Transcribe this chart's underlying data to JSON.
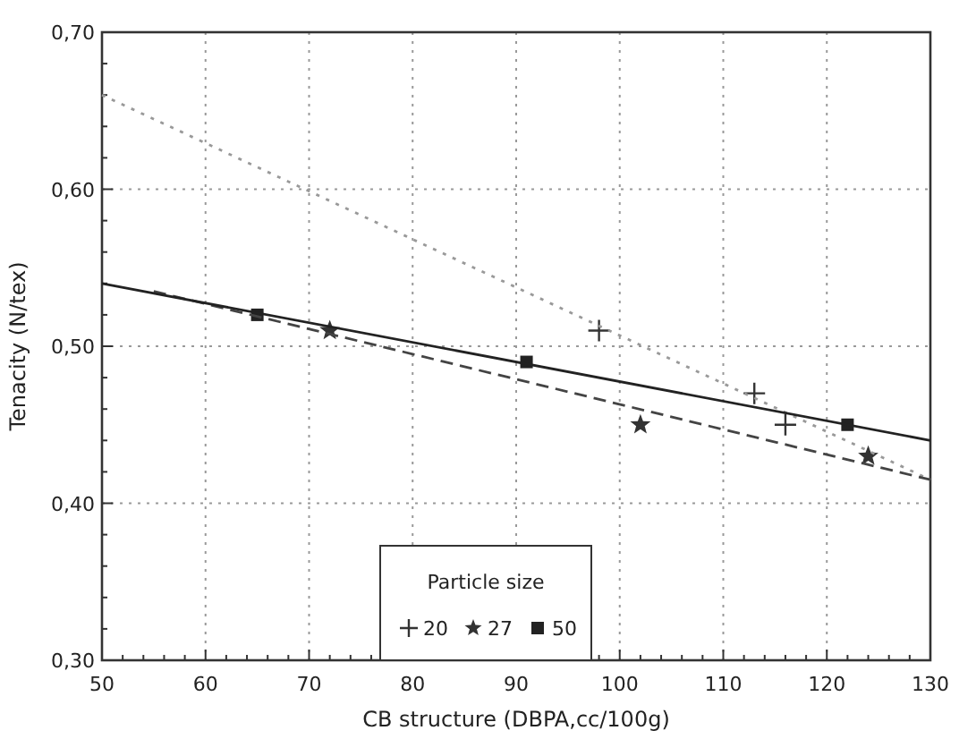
{
  "chart_data": {
    "type": "scatter",
    "xlabel": "CB structure (DBPA,cc/100g)",
    "ylabel": "Tenacity (N/tex)",
    "legend_title": "Particle size",
    "legend": "bottom",
    "grid": true,
    "xlim": [
      50,
      130
    ],
    "ylim": [
      0.3,
      0.7
    ],
    "xticks": [
      50,
      {
        "value": 52,
        "label": null
      },
      {
        "value": 54,
        "label": null
      },
      {
        "value": 56,
        "label": null
      },
      {
        "value": 58,
        "label": null
      },
      60,
      {
        "value": 62,
        "label": null
      },
      {
        "value": 64,
        "label": null
      },
      {
        "value": 66,
        "label": null
      },
      {
        "value": 68,
        "label": null
      },
      70,
      {
        "value": 72,
        "label": null
      },
      {
        "value": 74,
        "label": null
      },
      {
        "value": 76,
        "label": null
      },
      {
        "value": 78,
        "label": null
      },
      80,
      {
        "value": 82,
        "label": null
      },
      {
        "value": 84,
        "label": null
      },
      {
        "value": 86,
        "label": null
      },
      {
        "value": 88,
        "label": null
      },
      90,
      {
        "value": 92,
        "label": null
      },
      {
        "value": 94,
        "label": null
      },
      {
        "value": 96,
        "label": null
      },
      {
        "value": 98,
        "label": null
      },
      100,
      {
        "value": 102,
        "label": null
      },
      {
        "value": 104,
        "label": null
      },
      {
        "value": 106,
        "label": null
      },
      {
        "value": 108,
        "label": null
      },
      110,
      {
        "value": 112,
        "label": null
      },
      {
        "value": 114,
        "label": null
      },
      {
        "value": 116,
        "label": null
      },
      {
        "value": 118,
        "label": null
      },
      120,
      {
        "value": 122,
        "label": null
      },
      {
        "value": 124,
        "label": null
      },
      {
        "value": 126,
        "label": null
      },
      {
        "value": 128,
        "label": null
      },
      130
    ],
    "yticks": [
      {
        "value": 0.3,
        "label": "0,30"
      },
      {
        "value": 0.32,
        "label": null
      },
      {
        "value": 0.34,
        "label": null
      },
      {
        "value": 0.36,
        "label": null
      },
      {
        "value": 0.38,
        "label": null
      },
      {
        "value": 0.4,
        "label": "0,40"
      },
      {
        "value": 0.42,
        "label": null
      },
      {
        "value": 0.44,
        "label": null
      },
      {
        "value": 0.46,
        "label": null
      },
      {
        "value": 0.48,
        "label": null
      },
      {
        "value": 0.5,
        "label": "0,50"
      },
      {
        "value": 0.52,
        "label": null
      },
      {
        "value": 0.54,
        "label": null
      },
      {
        "value": 0.56,
        "label": null
      },
      {
        "value": 0.58,
        "label": null
      },
      {
        "value": 0.6,
        "label": "0,60"
      },
      {
        "value": 0.62,
        "label": null
      },
      {
        "value": 0.64,
        "label": null
      },
      {
        "value": 0.66,
        "label": null
      },
      {
        "value": 0.68,
        "label": null
      },
      {
        "value": 0.7,
        "label": "0,70"
      }
    ],
    "series": [
      {
        "name": "20",
        "marker": "cross",
        "color": "#333333",
        "x": [
          98,
          113,
          116
        ],
        "values": [
          0.51,
          0.47,
          0.45
        ]
      },
      {
        "name": "27",
        "marker": "star",
        "color": "#333333",
        "x": [
          72,
          102,
          124
        ],
        "values": [
          0.51,
          0.45,
          0.43
        ]
      },
      {
        "name": "50",
        "marker": "square",
        "color": "#222222",
        "x": [
          65,
          91,
          122
        ],
        "values": [
          0.52,
          0.49,
          0.45
        ]
      },
      {
        "type": "line",
        "marker": "none",
        "line_style": "dotted",
        "color": "#999999",
        "x": [
          50,
          130
        ],
        "values": [
          0.66,
          0.415
        ]
      },
      {
        "type": "line",
        "marker": "none",
        "line_style": "dashed",
        "color": "#444444",
        "x": [
          55,
          130
        ],
        "values": [
          0.535,
          0.415
        ]
      },
      {
        "type": "line",
        "marker": "none",
        "line_style": "solid",
        "color": "#222222",
        "x": [
          50,
          130
        ],
        "values": [
          0.54,
          0.44
        ]
      }
    ]
  }
}
